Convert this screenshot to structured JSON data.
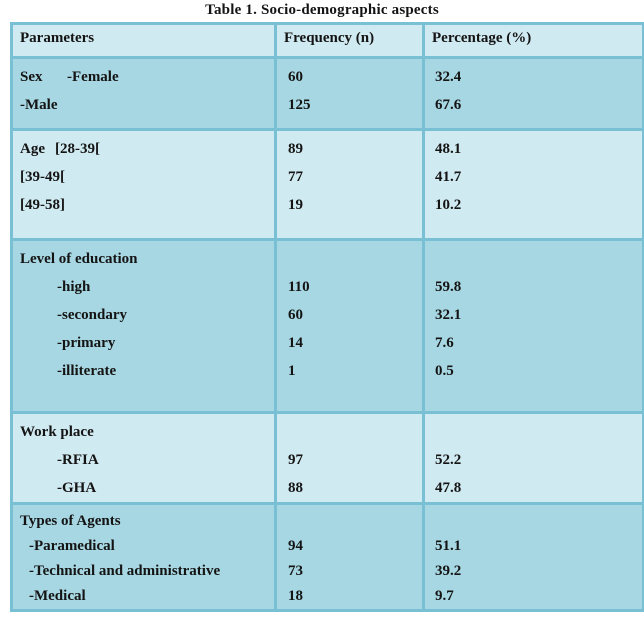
{
  "title": "Table 1. Socio-demographic aspects",
  "colors": {
    "section_light": "#d0eaf1",
    "section_medium": "#a7d7e2",
    "border": "#7ac0d4",
    "text": "#141414",
    "page_background": "#ffffff"
  },
  "table": {
    "columns": [
      "Parameters",
      "Frequency (n)",
      "Percentage (%)"
    ],
    "sections": [
      {
        "id": "sex",
        "shade": "medium",
        "lines": [
          {
            "head": "Sex",
            "item": "-Female",
            "freq": "60",
            "pct": "32.4"
          },
          {
            "head": "",
            "item": "-Male",
            "freq": "125",
            "pct": "67.6"
          }
        ]
      },
      {
        "id": "age",
        "shade": "light",
        "lines": [
          {
            "head": "Age",
            "item": "[28-39[",
            "freq": "89",
            "pct": "48.1"
          },
          {
            "head": "",
            "item": "[39-49[",
            "freq": "77",
            "pct": "41.7"
          },
          {
            "head": "",
            "item": "[49-58]",
            "freq": "19",
            "pct": "10.2"
          }
        ]
      },
      {
        "id": "education",
        "shade": "medium",
        "lines": [
          {
            "head": "Level of education",
            "item": "",
            "freq": "",
            "pct": ""
          },
          {
            "head": "",
            "item": "-high",
            "freq": "110",
            "pct": "59.8"
          },
          {
            "head": "",
            "item": "-secondary",
            "freq": "60",
            "pct": "32.1"
          },
          {
            "head": "",
            "item": "-primary",
            "freq": "14",
            "pct": "7.6"
          },
          {
            "head": "",
            "item": "-illiterate",
            "freq": "1",
            "pct": "0.5"
          }
        ]
      },
      {
        "id": "work",
        "shade": "light",
        "lines": [
          {
            "head": "Work place",
            "item": "",
            "freq": "",
            "pct": ""
          },
          {
            "head": "",
            "item": "-RFIA",
            "freq": "97",
            "pct": "52.2"
          },
          {
            "head": "",
            "item": "-GHA",
            "freq": "88",
            "pct": "47.8"
          }
        ]
      },
      {
        "id": "agents",
        "shade": "medium",
        "lines": [
          {
            "head": "Types of Agents",
            "item": "",
            "freq": "",
            "pct": ""
          },
          {
            "head": "",
            "item": "-Paramedical",
            "freq": "94",
            "pct": "51.1"
          },
          {
            "head": "",
            "item": "-Technical and administrative",
            "freq": "73",
            "pct": "39.2"
          },
          {
            "head": "",
            "item": "-Medical",
            "freq": "18",
            "pct": "9.7"
          }
        ]
      }
    ]
  },
  "chart_data": {
    "type": "table",
    "title": "Table 1. Socio-demographic aspects",
    "columns": [
      "Parameters",
      "Frequency (n)",
      "Percentage (%)"
    ],
    "rows": [
      [
        "Sex -Female",
        60,
        32.4
      ],
      [
        "Sex -Male",
        125,
        67.6
      ],
      [
        "Age [28-39[",
        89,
        48.1
      ],
      [
        "Age [39-49[",
        77,
        41.7
      ],
      [
        "Age [49-58]",
        19,
        10.2
      ],
      [
        "Level of education -high",
        110,
        59.8
      ],
      [
        "Level of education -secondary",
        60,
        32.1
      ],
      [
        "Level of education -primary",
        14,
        7.6
      ],
      [
        "Level of education -illiterate",
        1,
        0.5
      ],
      [
        "Work place -RFIA",
        97,
        52.2
      ],
      [
        "Work place -GHA",
        88,
        47.8
      ],
      [
        "Types of Agents -Paramedical",
        94,
        51.1
      ],
      [
        "Types of Agents -Technical and administrative",
        73,
        39.2
      ],
      [
        "Types of Agents -Medical",
        18,
        9.7
      ]
    ]
  }
}
